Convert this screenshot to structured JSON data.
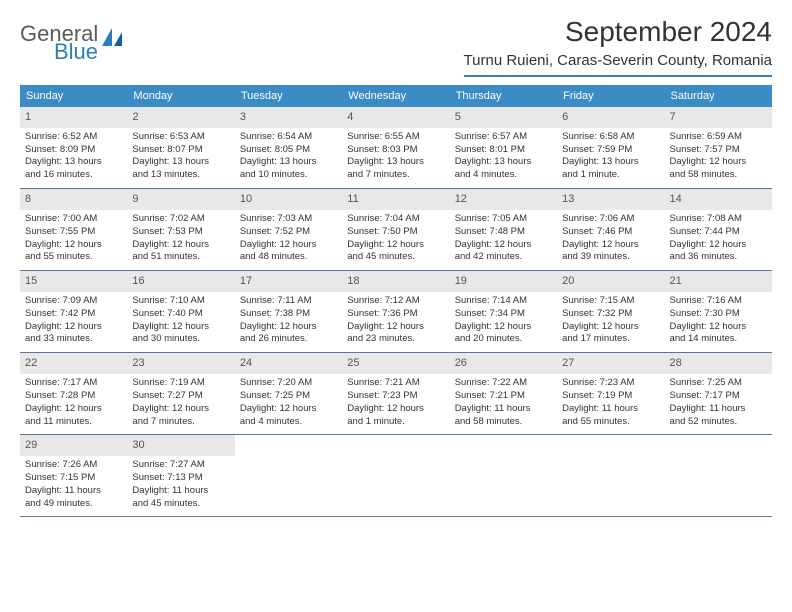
{
  "logo": {
    "word1": "General",
    "word2": "Blue"
  },
  "title": "September 2024",
  "location": "Turnu Ruieni, Caras-Severin County, Romania",
  "colors": {
    "header_bar": "#3b8bc7",
    "rule": "#5b7799",
    "daynum_bg": "#e8e8e8",
    "logo_blue": "#2a7fbf"
  },
  "weekdays": [
    "Sunday",
    "Monday",
    "Tuesday",
    "Wednesday",
    "Thursday",
    "Friday",
    "Saturday"
  ],
  "weeks": [
    [
      {
        "n": "1",
        "sunrise": "Sunrise: 6:52 AM",
        "sunset": "Sunset: 8:09 PM",
        "day1": "Daylight: 13 hours",
        "day2": "and 16 minutes."
      },
      {
        "n": "2",
        "sunrise": "Sunrise: 6:53 AM",
        "sunset": "Sunset: 8:07 PM",
        "day1": "Daylight: 13 hours",
        "day2": "and 13 minutes."
      },
      {
        "n": "3",
        "sunrise": "Sunrise: 6:54 AM",
        "sunset": "Sunset: 8:05 PM",
        "day1": "Daylight: 13 hours",
        "day2": "and 10 minutes."
      },
      {
        "n": "4",
        "sunrise": "Sunrise: 6:55 AM",
        "sunset": "Sunset: 8:03 PM",
        "day1": "Daylight: 13 hours",
        "day2": "and 7 minutes."
      },
      {
        "n": "5",
        "sunrise": "Sunrise: 6:57 AM",
        "sunset": "Sunset: 8:01 PM",
        "day1": "Daylight: 13 hours",
        "day2": "and 4 minutes."
      },
      {
        "n": "6",
        "sunrise": "Sunrise: 6:58 AM",
        "sunset": "Sunset: 7:59 PM",
        "day1": "Daylight: 13 hours",
        "day2": "and 1 minute."
      },
      {
        "n": "7",
        "sunrise": "Sunrise: 6:59 AM",
        "sunset": "Sunset: 7:57 PM",
        "day1": "Daylight: 12 hours",
        "day2": "and 58 minutes."
      }
    ],
    [
      {
        "n": "8",
        "sunrise": "Sunrise: 7:00 AM",
        "sunset": "Sunset: 7:55 PM",
        "day1": "Daylight: 12 hours",
        "day2": "and 55 minutes."
      },
      {
        "n": "9",
        "sunrise": "Sunrise: 7:02 AM",
        "sunset": "Sunset: 7:53 PM",
        "day1": "Daylight: 12 hours",
        "day2": "and 51 minutes."
      },
      {
        "n": "10",
        "sunrise": "Sunrise: 7:03 AM",
        "sunset": "Sunset: 7:52 PM",
        "day1": "Daylight: 12 hours",
        "day2": "and 48 minutes."
      },
      {
        "n": "11",
        "sunrise": "Sunrise: 7:04 AM",
        "sunset": "Sunset: 7:50 PM",
        "day1": "Daylight: 12 hours",
        "day2": "and 45 minutes."
      },
      {
        "n": "12",
        "sunrise": "Sunrise: 7:05 AM",
        "sunset": "Sunset: 7:48 PM",
        "day1": "Daylight: 12 hours",
        "day2": "and 42 minutes."
      },
      {
        "n": "13",
        "sunrise": "Sunrise: 7:06 AM",
        "sunset": "Sunset: 7:46 PM",
        "day1": "Daylight: 12 hours",
        "day2": "and 39 minutes."
      },
      {
        "n": "14",
        "sunrise": "Sunrise: 7:08 AM",
        "sunset": "Sunset: 7:44 PM",
        "day1": "Daylight: 12 hours",
        "day2": "and 36 minutes."
      }
    ],
    [
      {
        "n": "15",
        "sunrise": "Sunrise: 7:09 AM",
        "sunset": "Sunset: 7:42 PM",
        "day1": "Daylight: 12 hours",
        "day2": "and 33 minutes."
      },
      {
        "n": "16",
        "sunrise": "Sunrise: 7:10 AM",
        "sunset": "Sunset: 7:40 PM",
        "day1": "Daylight: 12 hours",
        "day2": "and 30 minutes."
      },
      {
        "n": "17",
        "sunrise": "Sunrise: 7:11 AM",
        "sunset": "Sunset: 7:38 PM",
        "day1": "Daylight: 12 hours",
        "day2": "and 26 minutes."
      },
      {
        "n": "18",
        "sunrise": "Sunrise: 7:12 AM",
        "sunset": "Sunset: 7:36 PM",
        "day1": "Daylight: 12 hours",
        "day2": "and 23 minutes."
      },
      {
        "n": "19",
        "sunrise": "Sunrise: 7:14 AM",
        "sunset": "Sunset: 7:34 PM",
        "day1": "Daylight: 12 hours",
        "day2": "and 20 minutes."
      },
      {
        "n": "20",
        "sunrise": "Sunrise: 7:15 AM",
        "sunset": "Sunset: 7:32 PM",
        "day1": "Daylight: 12 hours",
        "day2": "and 17 minutes."
      },
      {
        "n": "21",
        "sunrise": "Sunrise: 7:16 AM",
        "sunset": "Sunset: 7:30 PM",
        "day1": "Daylight: 12 hours",
        "day2": "and 14 minutes."
      }
    ],
    [
      {
        "n": "22",
        "sunrise": "Sunrise: 7:17 AM",
        "sunset": "Sunset: 7:28 PM",
        "day1": "Daylight: 12 hours",
        "day2": "and 11 minutes."
      },
      {
        "n": "23",
        "sunrise": "Sunrise: 7:19 AM",
        "sunset": "Sunset: 7:27 PM",
        "day1": "Daylight: 12 hours",
        "day2": "and 7 minutes."
      },
      {
        "n": "24",
        "sunrise": "Sunrise: 7:20 AM",
        "sunset": "Sunset: 7:25 PM",
        "day1": "Daylight: 12 hours",
        "day2": "and 4 minutes."
      },
      {
        "n": "25",
        "sunrise": "Sunrise: 7:21 AM",
        "sunset": "Sunset: 7:23 PM",
        "day1": "Daylight: 12 hours",
        "day2": "and 1 minute."
      },
      {
        "n": "26",
        "sunrise": "Sunrise: 7:22 AM",
        "sunset": "Sunset: 7:21 PM",
        "day1": "Daylight: 11 hours",
        "day2": "and 58 minutes."
      },
      {
        "n": "27",
        "sunrise": "Sunrise: 7:23 AM",
        "sunset": "Sunset: 7:19 PM",
        "day1": "Daylight: 11 hours",
        "day2": "and 55 minutes."
      },
      {
        "n": "28",
        "sunrise": "Sunrise: 7:25 AM",
        "sunset": "Sunset: 7:17 PM",
        "day1": "Daylight: 11 hours",
        "day2": "and 52 minutes."
      }
    ],
    [
      {
        "n": "29",
        "sunrise": "Sunrise: 7:26 AM",
        "sunset": "Sunset: 7:15 PM",
        "day1": "Daylight: 11 hours",
        "day2": "and 49 minutes."
      },
      {
        "n": "30",
        "sunrise": "Sunrise: 7:27 AM",
        "sunset": "Sunset: 7:13 PM",
        "day1": "Daylight: 11 hours",
        "day2": "and 45 minutes."
      },
      {
        "blank": true
      },
      {
        "blank": true
      },
      {
        "blank": true
      },
      {
        "blank": true
      },
      {
        "blank": true
      }
    ]
  ]
}
